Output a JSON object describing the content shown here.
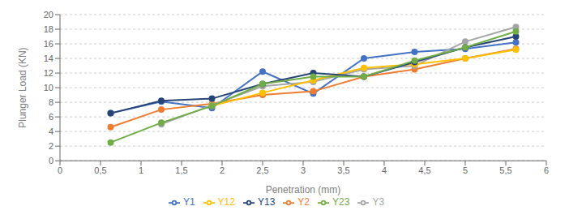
{
  "chart_data": {
    "type": "line",
    "xlabel": "Penetration (mm)",
    "ylabel": "Plunger Load (KN)",
    "x": [
      0.625,
      1.25,
      1.875,
      2.5,
      3.125,
      3.75,
      4.375,
      5.0,
      5.625
    ],
    "series": [
      {
        "name": "Y1",
        "color": "#4472C4",
        "values": [
          6.5,
          8.1,
          7.2,
          12.2,
          9.2,
          14.0,
          14.9,
          15.3,
          16.2
        ]
      },
      {
        "name": "Y2",
        "color": "#ED7D31",
        "values": [
          4.6,
          7.0,
          7.8,
          9.0,
          9.5,
          11.5,
          12.5,
          14.0,
          15.3
        ]
      },
      {
        "name": "Y3",
        "color": "#A5A5A5",
        "values": [
          null,
          5.0,
          7.6,
          10.2,
          10.8,
          12.5,
          13.0,
          16.3,
          18.3
        ]
      },
      {
        "name": "Y12",
        "color": "#FFC000",
        "values": [
          null,
          null,
          7.5,
          9.3,
          11.0,
          12.7,
          13.2,
          14.0,
          15.2
        ]
      },
      {
        "name": "Y13",
        "color": "#264478",
        "values": [
          6.5,
          8.2,
          8.5,
          10.5,
          12.0,
          11.5,
          13.5,
          15.5,
          17.0
        ]
      },
      {
        "name": "Y23",
        "color": "#70AD47",
        "values": [
          2.5,
          5.2,
          7.5,
          10.5,
          11.5,
          11.5,
          13.7,
          15.5,
          17.7
        ]
      }
    ],
    "xlim": [
      0,
      6
    ],
    "ylim": [
      0,
      20
    ],
    "xticks": [
      0,
      {
        "value": 0.5,
        "label": "0,5"
      },
      1,
      {
        "value": 1.5,
        "label": "1,5"
      },
      2,
      {
        "value": 2.5,
        "label": "2,5"
      },
      3,
      {
        "value": 3.5,
        "label": "3,5"
      },
      4,
      {
        "value": 4.5,
        "label": "4,5"
      },
      5,
      {
        "value": 5.5,
        "label": "5,5"
      },
      6
    ],
    "yticks": [
      0,
      2,
      4,
      6,
      8,
      10,
      12,
      14,
      16,
      18,
      20
    ],
    "grid": "y",
    "legend": "bottom",
    "marker": "circle"
  }
}
